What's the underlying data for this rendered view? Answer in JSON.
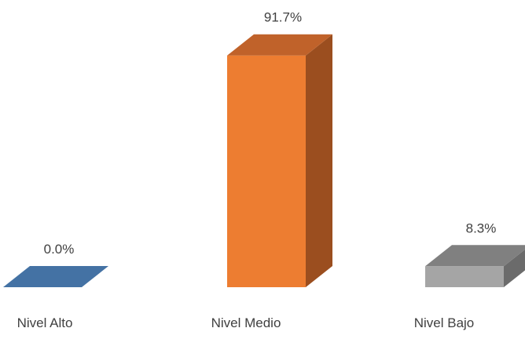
{
  "chart_data": {
    "type": "bar",
    "style": "3d-column",
    "categories": [
      "Nivel Alto",
      "Nivel Medio",
      "Nivel Bajo"
    ],
    "values": [
      0.0,
      91.7,
      8.3
    ],
    "data_labels": [
      "0.0%",
      "91.7%",
      "8.3%"
    ],
    "ylim": [
      0,
      100
    ],
    "grid": false,
    "legend": "none",
    "colors": [
      {
        "front": "#4472A4",
        "top": "#3F6A99",
        "side": "#2F5378"
      },
      {
        "front": "#ED7D31",
        "top": "#C0622A",
        "side": "#9B4E1F"
      },
      {
        "front": "#A5A5A5",
        "top": "#808080",
        "side": "#6B6B6B"
      }
    ]
  }
}
